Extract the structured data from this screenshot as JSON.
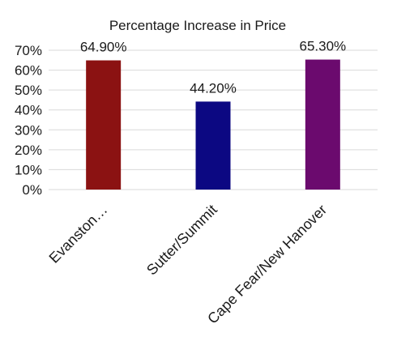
{
  "chart_data": {
    "type": "bar",
    "title": "Percentage Increase in Price",
    "xlabel": "",
    "ylabel": "",
    "categories": [
      "Evanston…",
      "Sutter/Summit",
      "Cape Fear/New Hanover"
    ],
    "values": [
      64.9,
      44.2,
      65.3
    ],
    "data_labels": [
      "64.90%",
      "44.20%",
      "65.30%"
    ],
    "bar_colors": [
      "#8b1212",
      "#0c0882",
      "#6b0a6e"
    ],
    "ylim": [
      0,
      70
    ],
    "yticks": [
      0,
      10,
      20,
      30,
      40,
      50,
      60,
      70
    ],
    "ytick_labels": [
      "0%",
      "10%",
      "20%",
      "30%",
      "40%",
      "50%",
      "60%",
      "70%"
    ],
    "grid": true,
    "legend": "none"
  }
}
